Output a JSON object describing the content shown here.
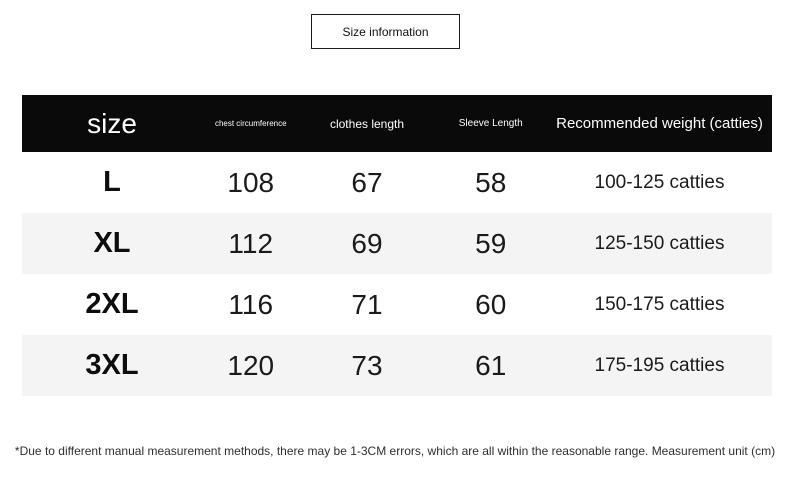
{
  "title_box": {
    "label": "Size information"
  },
  "table": {
    "header": {
      "size": "size",
      "chest": "chest circumference",
      "clothes": "clothes length",
      "sleeve": "Sleeve Length",
      "weight": "Recommended weight (catties)"
    },
    "rows": [
      {
        "size": "L",
        "chest": "108",
        "clothes": "67",
        "sleeve": "58",
        "weight": "100-125 catties"
      },
      {
        "size": "XL",
        "chest": "112",
        "clothes": "69",
        "sleeve": "59",
        "weight": "125-150 catties"
      },
      {
        "size": "2XL",
        "chest": "116",
        "clothes": "71",
        "sleeve": "60",
        "weight": "150-175 catties"
      },
      {
        "size": "3XL",
        "chest": "120",
        "clothes": "73",
        "sleeve": "61",
        "weight": "175-195 catties"
      }
    ]
  },
  "note": "*Due to different manual measurement methods, there may be 1-3CM errors, which are all within the reasonable range. Measurement unit (cm)",
  "colors": {
    "page_bg": "#ffffff",
    "header_bg": "#0a0a0a",
    "header_text": "#ffffff",
    "row_stripe": "#f4f4f4",
    "note_text": "#2e2e2e"
  }
}
